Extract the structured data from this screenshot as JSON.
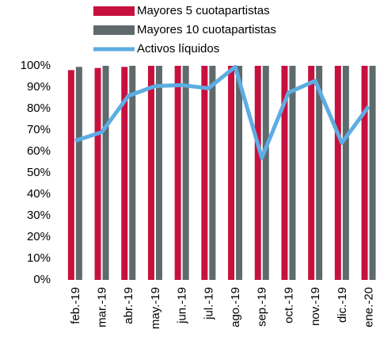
{
  "chart_data": {
    "type": "bar_line",
    "categories": [
      "feb.-19",
      "mar.-19",
      "abr.-19",
      "may.-19",
      "jun.-19",
      "jul.-19",
      "ago.-19",
      "sep.-19",
      "oct.-19",
      "nov.-19",
      "dic.-19",
      "ene.-20"
    ],
    "series": [
      {
        "name": "Mayores 5 cuotapartistas",
        "type": "bar",
        "color": "#c8103e",
        "values": [
          98,
          99,
          99.5,
          100,
          100,
          100,
          100,
          100,
          100,
          100,
          100,
          100
        ]
      },
      {
        "name": "Mayores 10 cuotapartistas",
        "type": "bar",
        "color": "#5f6a6c",
        "values": [
          99.5,
          100,
          100,
          100,
          100,
          100,
          100,
          100,
          100,
          100,
          100,
          100
        ]
      },
      {
        "name": "Activos líquidos",
        "type": "line",
        "color": "#5dade2",
        "values": [
          65,
          69,
          86,
          90.5,
          91,
          89.5,
          99.5,
          57,
          87.5,
          93,
          64,
          81
        ]
      }
    ],
    "ylim": [
      0,
      100
    ],
    "yticks": [
      {
        "value": 0,
        "label": "0%"
      },
      {
        "value": 10,
        "label": "10%"
      },
      {
        "value": 20,
        "label": "20%"
      },
      {
        "value": 30,
        "label": "30%"
      },
      {
        "value": 40,
        "label": "40%"
      },
      {
        "value": 50,
        "label": "50%"
      },
      {
        "value": 60,
        "label": "60%"
      },
      {
        "value": 70,
        "label": "70%"
      },
      {
        "value": 80,
        "label": "80%"
      },
      {
        "value": 90,
        "label": "90%"
      },
      {
        "value": 100,
        "label": "100%"
      }
    ],
    "legend": "top"
  }
}
